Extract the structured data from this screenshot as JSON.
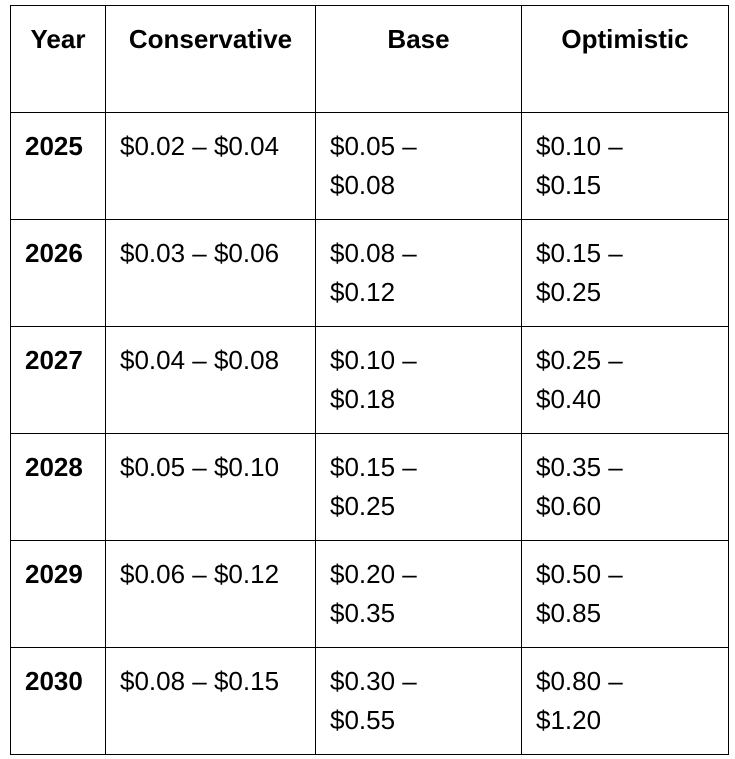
{
  "table": {
    "header": [
      "Year",
      "Conservative",
      "Base",
      "Optimistic"
    ],
    "rows": [
      [
        "2025",
        "$0.02 – $0.04",
        "$0.05 – $0.08",
        "$0.10 – $0.15"
      ],
      [
        "2026",
        "$0.03 – $0.06",
        "$0.08 – $0.12",
        "$0.15 – $0.25"
      ],
      [
        "2027",
        "$0.04 – $0.08",
        "$0.10 – $0.18",
        "$0.25 – $0.40"
      ],
      [
        "2028",
        "$0.05 – $0.10",
        "$0.15 – $0.25",
        "$0.35 – $0.60"
      ],
      [
        "2029",
        "$0.06 – $0.12",
        "$0.20 – $0.35",
        "$0.50 – $0.85"
      ],
      [
        "2030",
        "$0.08 – $0.15",
        "$0.30 – $0.55",
        "$0.80 – $1.20"
      ]
    ]
  }
}
